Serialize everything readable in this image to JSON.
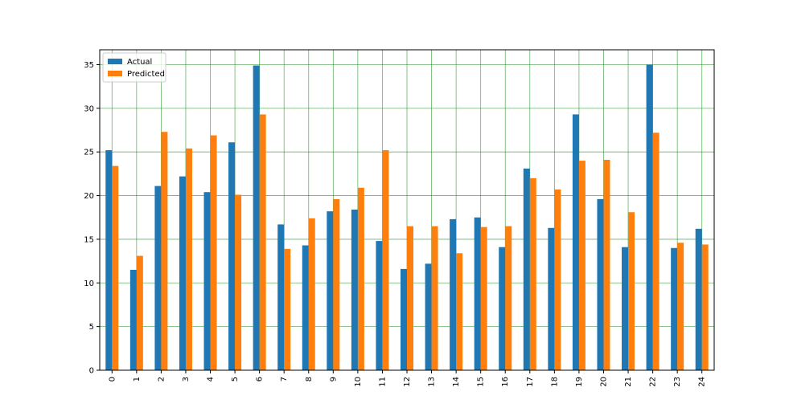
{
  "chart_data": {
    "type": "bar",
    "categories": [
      "0",
      "1",
      "2",
      "3",
      "4",
      "5",
      "6",
      "7",
      "8",
      "9",
      "10",
      "11",
      "12",
      "13",
      "14",
      "15",
      "16",
      "17",
      "18",
      "19",
      "20",
      "21",
      "22",
      "23",
      "24"
    ],
    "series": [
      {
        "name": "Actual",
        "color": "#1f77b4",
        "values": [
          25.2,
          11.5,
          21.1,
          22.2,
          20.4,
          26.1,
          34.9,
          16.7,
          14.3,
          18.2,
          18.4,
          14.8,
          11.6,
          12.2,
          17.3,
          17.5,
          14.1,
          23.1,
          16.3,
          29.3,
          19.6,
          14.1,
          35.0,
          14.0,
          16.2
        ]
      },
      {
        "name": "Predicted",
        "color": "#ff7f0e",
        "values": [
          23.4,
          13.1,
          27.3,
          25.4,
          26.9,
          20.1,
          29.3,
          13.9,
          17.4,
          19.6,
          20.9,
          25.2,
          16.5,
          16.5,
          13.4,
          16.4,
          16.5,
          22.0,
          20.7,
          24.0,
          24.1,
          18.1,
          27.2,
          14.6,
          14.4
        ]
      }
    ],
    "ylim": [
      0,
      36.7
    ],
    "yticks": [
      0,
      5,
      10,
      15,
      20,
      25,
      30,
      35
    ],
    "grid": true,
    "grid_color": "#008000",
    "legend_position": "upper-left",
    "xtick_rotation": 90
  }
}
